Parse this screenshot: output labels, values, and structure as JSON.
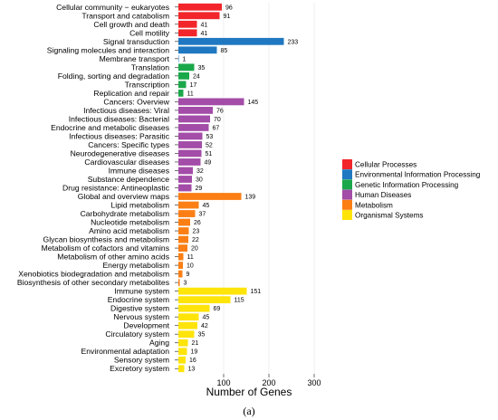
{
  "chart_data": {
    "type": "bar",
    "orientation": "horizontal",
    "xlabel": "Number of Genes",
    "xlim": [
      0,
      330
    ],
    "xticks": [
      100,
      200,
      300
    ],
    "grid": true,
    "legend_position": "right",
    "caption": "(a)",
    "groups": [
      {
        "name": "Cellular Processes",
        "color": "#f2262a"
      },
      {
        "name": "Environmental Information Processing",
        "color": "#1f78c1"
      },
      {
        "name": "Genetic Information Processing",
        "color": "#1aa84a"
      },
      {
        "name": "Human Diseases",
        "color": "#a34ca8"
      },
      {
        "name": "Metabolism",
        "color": "#fb7f15"
      },
      {
        "name": "Organismal Systems",
        "color": "#ffe40a"
      }
    ],
    "categories": [
      {
        "label": "Cellular community − eukaryotes",
        "value": 96,
        "group": 0
      },
      {
        "label": "Transport and catabolism",
        "value": 91,
        "group": 0
      },
      {
        "label": "Cell growth and death",
        "value": 41,
        "group": 0
      },
      {
        "label": "Cell motility",
        "value": 41,
        "group": 0
      },
      {
        "label": "Signal transduction",
        "value": 233,
        "group": 1
      },
      {
        "label": "Signaling molecules and interaction",
        "value": 85,
        "group": 1
      },
      {
        "label": "Membrane transport",
        "value": 1,
        "group": 1
      },
      {
        "label": "Translation",
        "value": 35,
        "group": 2
      },
      {
        "label": "Folding, sorting and degradation",
        "value": 24,
        "group": 2
      },
      {
        "label": "Transcription",
        "value": 17,
        "group": 2
      },
      {
        "label": "Replication and repair",
        "value": 11,
        "group": 2
      },
      {
        "label": "Cancers: Overview",
        "value": 145,
        "group": 3
      },
      {
        "label": "Infectious diseases: Viral",
        "value": 76,
        "group": 3
      },
      {
        "label": "Infectious diseases: Bacterial",
        "value": 70,
        "group": 3
      },
      {
        "label": "Endocrine and metabolic diseases",
        "value": 67,
        "group": 3
      },
      {
        "label": "Infectious diseases: Parasitic",
        "value": 53,
        "group": 3
      },
      {
        "label": "Cancers: Specific types",
        "value": 52,
        "group": 3
      },
      {
        "label": "Neurodegenerative diseases",
        "value": 51,
        "group": 3
      },
      {
        "label": "Cardiovascular diseases",
        "value": 49,
        "group": 3
      },
      {
        "label": "Immune diseases",
        "value": 32,
        "group": 3
      },
      {
        "label": "Substance dependence",
        "value": 30,
        "group": 3
      },
      {
        "label": "Drug resistance: Antineoplastic",
        "value": 29,
        "group": 3
      },
      {
        "label": "Global and overview maps",
        "value": 139,
        "group": 4
      },
      {
        "label": "Lipid metabolism",
        "value": 45,
        "group": 4
      },
      {
        "label": "Carbohydrate metabolism",
        "value": 37,
        "group": 4
      },
      {
        "label": "Nucleotide metabolism",
        "value": 26,
        "group": 4
      },
      {
        "label": "Amino acid metabolism",
        "value": 23,
        "group": 4
      },
      {
        "label": "Glycan biosynthesis and metabolism",
        "value": 22,
        "group": 4
      },
      {
        "label": "Metabolism of cofactors and vitamins",
        "value": 20,
        "group": 4
      },
      {
        "label": "Metabolism of other amino acids",
        "value": 11,
        "group": 4
      },
      {
        "label": "Energy metabolism",
        "value": 10,
        "group": 4
      },
      {
        "label": "Xenobiotics biodegradation and metabolism",
        "value": 9,
        "group": 4
      },
      {
        "label": "Biosynthesis of other secondary metabolites",
        "value": 3,
        "group": 4
      },
      {
        "label": "Immune system",
        "value": 151,
        "group": 5
      },
      {
        "label": "Endocrine system",
        "value": 115,
        "group": 5
      },
      {
        "label": "Digestive system",
        "value": 69,
        "group": 5
      },
      {
        "label": "Nervous system",
        "value": 45,
        "group": 5
      },
      {
        "label": "Development",
        "value": 42,
        "group": 5
      },
      {
        "label": "Circulatory system",
        "value": 35,
        "group": 5
      },
      {
        "label": "Aging",
        "value": 21,
        "group": 5
      },
      {
        "label": "Environmental adaptation",
        "value": 19,
        "group": 5
      },
      {
        "label": "Sensory system",
        "value": 16,
        "group": 5
      },
      {
        "label": "Excretory system",
        "value": 13,
        "group": 5
      }
    ]
  }
}
